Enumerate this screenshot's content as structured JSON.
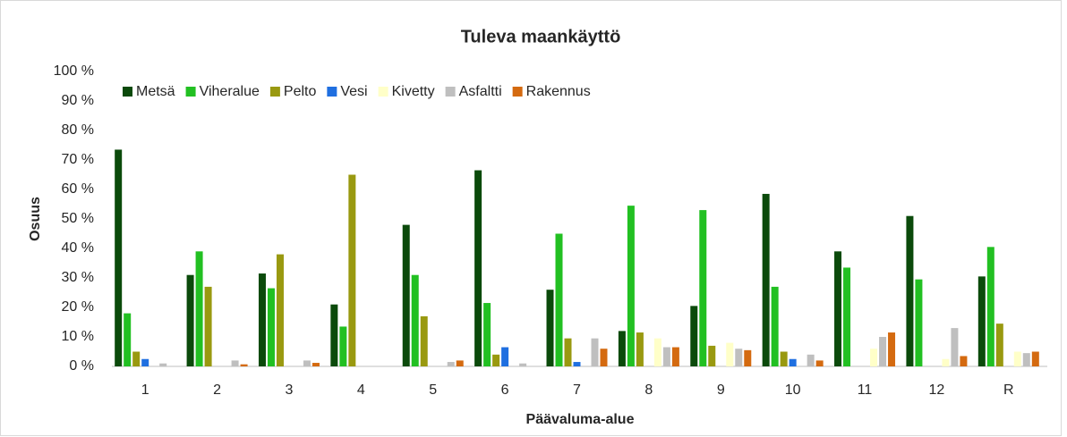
{
  "chart_data": {
    "type": "bar",
    "title": "Tuleva maankäyttö",
    "x_label": "Päävaluma-alue",
    "y_label": "Osuus",
    "categories": [
      "1",
      "2",
      "3",
      "4",
      "5",
      "6",
      "7",
      "8",
      "9",
      "10",
      "11",
      "12",
      "R"
    ],
    "series": [
      {
        "name": "Metsä",
        "color": "#0b4a0b",
        "values": [
          73.5,
          31,
          31.5,
          21,
          48,
          66.5,
          26,
          12,
          20.5,
          58.5,
          39,
          51,
          30.5
        ]
      },
      {
        "name": "Viheralue",
        "color": "#22c022",
        "values": [
          18,
          39,
          26.5,
          13.5,
          31,
          21.5,
          45,
          54.5,
          53,
          27,
          33.5,
          29.5,
          40.5
        ]
      },
      {
        "name": "Pelto",
        "color": "#999910",
        "values": [
          5,
          27,
          38,
          65,
          17,
          4,
          9.5,
          11.5,
          7,
          5,
          0,
          0,
          14.5
        ]
      },
      {
        "name": "Vesi",
        "color": "#1f6fe0",
        "values": [
          2.5,
          0,
          0,
          0,
          0,
          6.5,
          1.5,
          0,
          0,
          2.5,
          0,
          0,
          0
        ]
      },
      {
        "name": "Kivetty",
        "color": "#ffffc8",
        "values": [
          0,
          0,
          0,
          0,
          0,
          0,
          0,
          9.5,
          8,
          0,
          6,
          2.5,
          5
        ]
      },
      {
        "name": "Asfaltti",
        "color": "#bfbfbf",
        "values": [
          1,
          2,
          2,
          0,
          1.5,
          1,
          9.5,
          6.5,
          6,
          4,
          10,
          13,
          4.5
        ]
      },
      {
        "name": "Rakennus",
        "color": "#d46a10",
        "values": [
          0,
          0.7,
          1.2,
          0,
          2,
          0,
          6,
          6.5,
          5.5,
          2,
          11.5,
          3.5,
          5
        ]
      }
    ],
    "ylim": [
      0,
      100
    ],
    "yticks": [
      {
        "value": 0,
        "label": "0 %"
      },
      {
        "value": 10,
        "label": "10 %"
      },
      {
        "value": 20,
        "label": "20 %"
      },
      {
        "value": 30,
        "label": "30 %"
      },
      {
        "value": 40,
        "label": "40 %"
      },
      {
        "value": 50,
        "label": "50 %"
      },
      {
        "value": 60,
        "label": "60 %"
      },
      {
        "value": 70,
        "label": "70 %"
      },
      {
        "value": 80,
        "label": "80 %"
      },
      {
        "value": 90,
        "label": "90 %"
      },
      {
        "value": 100,
        "label": "100 %"
      }
    ],
    "grid": false,
    "legend": "top-left"
  }
}
